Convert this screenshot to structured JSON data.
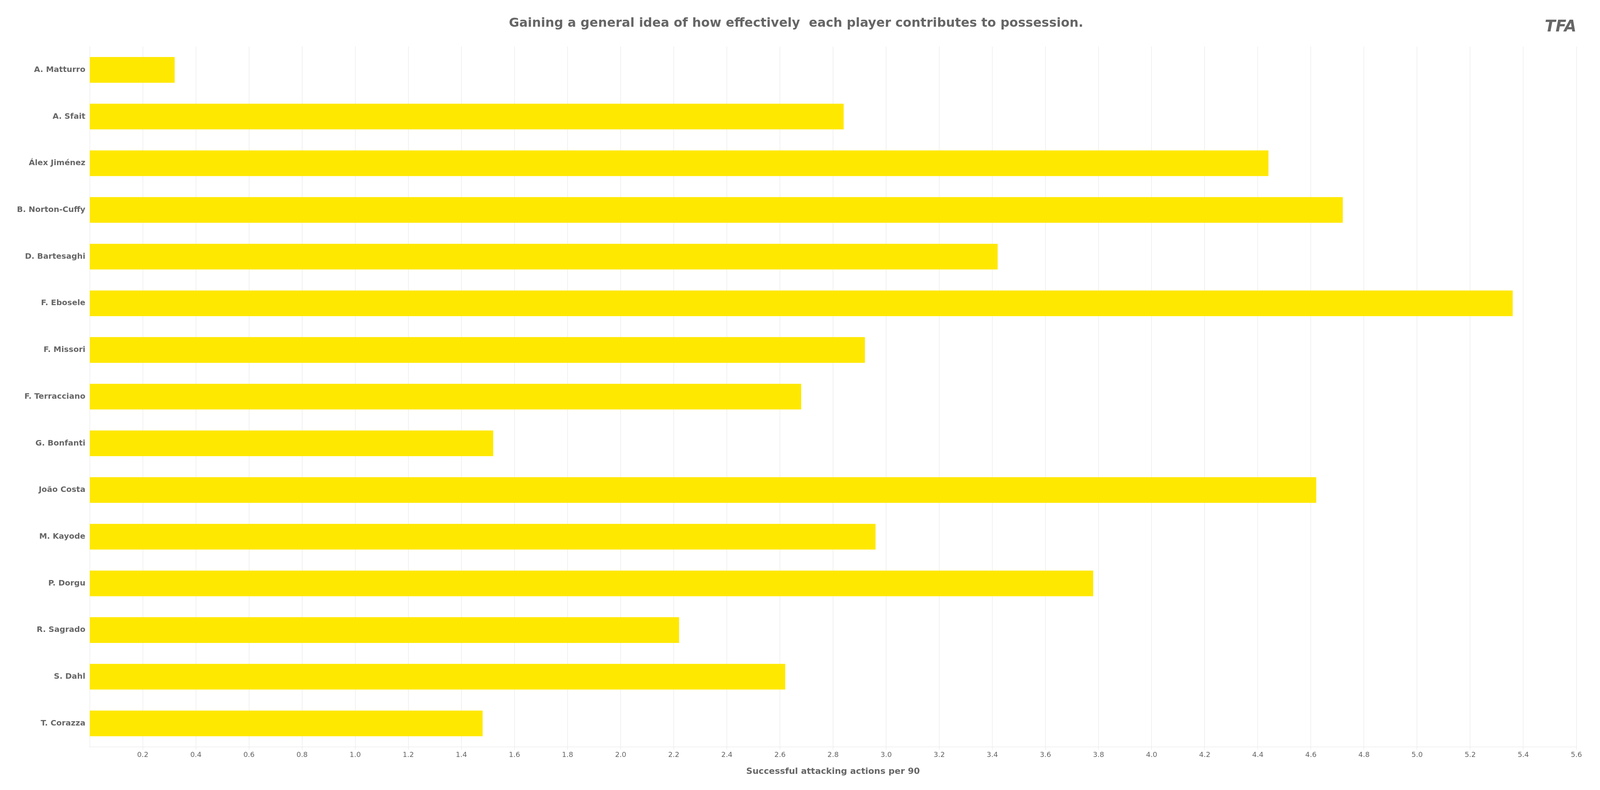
{
  "chart_data": {
    "type": "bar",
    "orientation": "horizontal",
    "title": "Gaining a general idea of how effectively  each player contributes to possession.",
    "annotations": [
      "TFA"
    ],
    "xlabel": "Successful attacking actions per 90",
    "categories": [
      "A. Matturro",
      "A. Sfait",
      "Álex Jiménez",
      "B. Norton-Cuffy",
      "D. Bartesaghi",
      "F. Ebosele",
      "F. Missori",
      "F. Terracciano",
      "G. Bonfanti",
      "João Costa",
      "M. Kayode",
      "P. Dorgu",
      "R. Sagrado",
      "S. Dahl",
      "T. Corazza"
    ],
    "values": [
      0.32,
      2.84,
      4.44,
      4.72,
      3.42,
      5.36,
      2.92,
      2.68,
      1.52,
      4.62,
      2.96,
      3.78,
      2.22,
      2.62,
      1.48
    ],
    "color": "#FFE800",
    "xlim": [
      0,
      5.6
    ],
    "xticks": [
      0.2,
      0.4,
      0.6,
      0.8,
      {
        "value": 1.0,
        "label": "1.0"
      },
      1.2,
      1.4,
      1.6,
      1.8,
      {
        "value": 2.0,
        "label": "2.0"
      },
      2.2,
      2.4,
      2.6,
      2.8,
      {
        "value": 3.0,
        "label": "3.0"
      },
      3.2,
      3.4,
      3.6,
      3.8,
      {
        "value": 4.0,
        "label": "4.0"
      },
      4.2,
      4.4,
      4.6,
      4.8,
      {
        "value": 5.0,
        "label": "5.0"
      },
      5.2,
      5.4,
      5.6
    ],
    "grid": true
  }
}
